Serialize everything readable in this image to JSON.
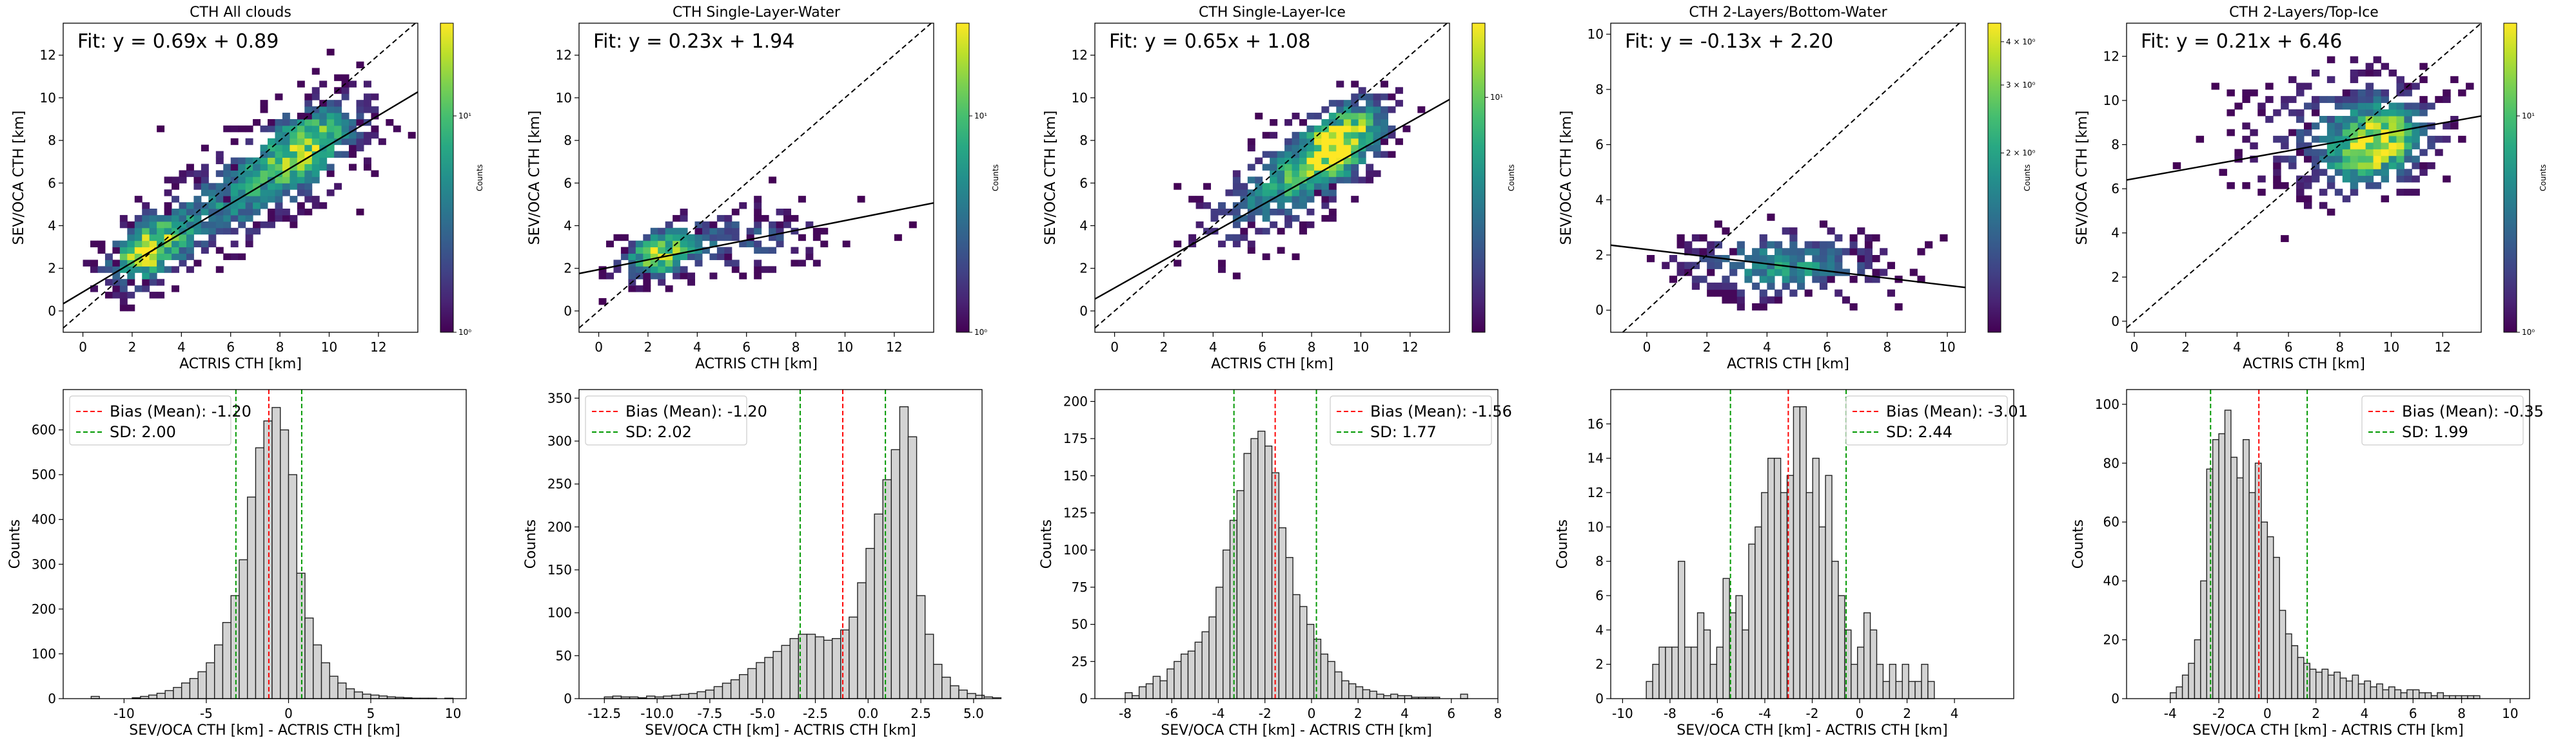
{
  "figure": {
    "colors": {
      "hist_fill": "#d3d3d3",
      "hist_edge": "#222222",
      "bias_line": "#ff0000",
      "sd_line": "#009900",
      "fit_line": "#000000",
      "identity_line": "#000000"
    },
    "colormap": "viridis"
  },
  "chart_data": [
    {
      "type": "heatmap",
      "panel": "scatter",
      "title": "CTH All clouds",
      "xlabel": "ACTRIS CTH [km]",
      "ylabel": "SEV/OCA CTH [km]",
      "annotation": "Fit: y = 0.69x + 0.89",
      "fit": {
        "slope": 0.69,
        "intercept": 0.89
      },
      "identity_line": true,
      "xlim": [
        -0.8,
        13.6
      ],
      "ylim": [
        -1.0,
        13.5
      ],
      "xticks": [
        "0",
        "2",
        "4",
        "6",
        "8",
        "10",
        "12"
      ],
      "yticks": [
        "0",
        "2",
        "4",
        "6",
        "8",
        "10",
        "12"
      ],
      "colorbar": {
        "label": "Counts",
        "scale": "log",
        "ticks": [
          "10⁰",
          "10¹"
        ]
      },
      "density_blobs": [
        {
          "x": 2.5,
          "y": 2.7,
          "sx": 1.0,
          "sy": 1.0,
          "w": 1.0,
          "rho": 0.5
        },
        {
          "x": 6.5,
          "y": 5.5,
          "sx": 2.5,
          "sy": 2.0,
          "w": 0.55,
          "rho": 0.75
        },
        {
          "x": 9.0,
          "y": 7.8,
          "sx": 1.3,
          "sy": 1.3,
          "w": 0.7,
          "rho": 0.5
        }
      ]
    },
    {
      "type": "heatmap",
      "panel": "scatter",
      "title": "CTH Single-Layer-Water",
      "xlabel": "ACTRIS CTH [km]",
      "ylabel": "SEV/OCA CTH [km]",
      "annotation": "Fit: y = 0.23x + 1.94",
      "fit": {
        "slope": 0.23,
        "intercept": 1.94
      },
      "identity_line": true,
      "xlim": [
        -0.8,
        13.6
      ],
      "ylim": [
        -1.0,
        13.5
      ],
      "xticks": [
        "0",
        "2",
        "4",
        "6",
        "8",
        "10",
        "12"
      ],
      "yticks": [
        "0",
        "2",
        "4",
        "6",
        "8",
        "10",
        "12"
      ],
      "colorbar": {
        "label": "Counts",
        "scale": "log",
        "ticks": [
          "10⁰",
          "10¹"
        ]
      },
      "density_blobs": [
        {
          "x": 2.3,
          "y": 2.5,
          "sx": 0.9,
          "sy": 0.7,
          "w": 1.0,
          "rho": 0.4
        },
        {
          "x": 5.5,
          "y": 3.2,
          "sx": 2.2,
          "sy": 0.9,
          "w": 0.35,
          "rho": 0.2
        }
      ]
    },
    {
      "type": "heatmap",
      "panel": "scatter",
      "title": "CTH Single-Layer-Ice",
      "xlabel": "ACTRIS CTH [km]",
      "ylabel": "SEV/OCA CTH [km]",
      "annotation": "Fit: y = 0.65x + 1.08",
      "fit": {
        "slope": 0.65,
        "intercept": 1.08
      },
      "identity_line": true,
      "xlim": [
        -0.8,
        13.6
      ],
      "ylim": [
        -1.0,
        13.5
      ],
      "xticks": [
        "0",
        "2",
        "4",
        "6",
        "8",
        "10",
        "12"
      ],
      "yticks": [
        "0",
        "2",
        "4",
        "6",
        "8",
        "10",
        "12"
      ],
      "colorbar": {
        "label": "Counts",
        "scale": "log",
        "ticks": [
          "10¹"
        ]
      },
      "density_blobs": [
        {
          "x": 7.0,
          "y": 6.0,
          "sx": 2.0,
          "sy": 1.8,
          "w": 0.6,
          "rho": 0.7
        },
        {
          "x": 9.0,
          "y": 7.8,
          "sx": 1.1,
          "sy": 1.2,
          "w": 1.0,
          "rho": 0.5
        }
      ]
    },
    {
      "type": "heatmap",
      "panel": "scatter",
      "title": "CTH 2-Layers/Bottom-Water",
      "xlabel": "ACTRIS CTH [km]",
      "ylabel": "SEV/OCA CTH [km]",
      "annotation": "Fit: y = -0.13x + 2.20",
      "fit": {
        "slope": -0.13,
        "intercept": 2.2
      },
      "identity_line": true,
      "xlim": [
        -1.2,
        10.6
      ],
      "ylim": [
        -0.8,
        10.4
      ],
      "xticks": [
        "0",
        "2",
        "4",
        "6",
        "8",
        "10"
      ],
      "yticks": [
        "0",
        "2",
        "4",
        "6",
        "8",
        "10"
      ],
      "colorbar": {
        "label": "Counts",
        "scale": "log",
        "ticks": [
          "2 × 10⁰",
          "3 × 10⁰",
          "4 × 10⁰"
        ]
      },
      "density_blobs": [
        {
          "x": 4.5,
          "y": 1.5,
          "sx": 2.0,
          "sy": 0.7,
          "w": 0.6,
          "rho": 0.0
        }
      ]
    },
    {
      "type": "heatmap",
      "panel": "scatter",
      "title": "CTH 2-Layers/Top-Ice",
      "xlabel": "ACTRIS CTH [km]",
      "ylabel": "SEV/OCA CTH [km]",
      "annotation": "Fit: y = 0.21x + 6.46",
      "fit": {
        "slope": 0.21,
        "intercept": 6.46
      },
      "identity_line": true,
      "xlim": [
        -0.3,
        13.5
      ],
      "ylim": [
        -0.5,
        13.5
      ],
      "xticks": [
        "0",
        "2",
        "4",
        "6",
        "8",
        "10",
        "12"
      ],
      "yticks": [
        "0",
        "2",
        "4",
        "6",
        "8",
        "10",
        "12"
      ],
      "colorbar": {
        "label": "Counts",
        "scale": "log",
        "ticks": [
          "10⁰",
          "10¹"
        ]
      },
      "density_blobs": [
        {
          "x": 9.3,
          "y": 7.8,
          "sx": 1.1,
          "sy": 1.1,
          "w": 1.0,
          "rho": 0.3
        },
        {
          "x": 8.0,
          "y": 8.5,
          "sx": 2.2,
          "sy": 1.6,
          "w": 0.35,
          "rho": 0.2
        }
      ]
    },
    {
      "type": "bar",
      "panel": "histogram",
      "xlabel": "SEV/OCA CTH [km] - ACTRIS CTH [km]",
      "ylabel": "Counts",
      "xlim": [
        -13.7,
        10.8
      ],
      "ylim": [
        0,
        690
      ],
      "xticks": [
        "-10",
        "-5",
        "0",
        "5",
        "10"
      ],
      "yticks": [
        "0",
        "100",
        "200",
        "300",
        "400",
        "500",
        "600"
      ],
      "bins": {
        "start": -12.0,
        "width": 0.5
      },
      "values": [
        5,
        0,
        0,
        0,
        0,
        2,
        5,
        8,
        12,
        18,
        25,
        35,
        45,
        60,
        80,
        120,
        170,
        230,
        310,
        450,
        560,
        620,
        650,
        600,
        500,
        280,
        180,
        120,
        80,
        50,
        35,
        22,
        15,
        10,
        8,
        6,
        4,
        3,
        2,
        1,
        1,
        1,
        0,
        1
      ],
      "bias": -1.2,
      "sd": 2.0,
      "sd_lines": [
        -3.2,
        0.8
      ],
      "legend": [
        "Bias (Mean): -1.20",
        "SD: 2.00"
      ],
      "legend_position": "upper-left"
    },
    {
      "type": "bar",
      "panel": "histogram",
      "xlabel": "SEV/OCA CTH [km] - ACTRIS CTH [km]",
      "ylabel": "Counts",
      "xlim": [
        -13.7,
        5.4
      ],
      "ylim": [
        0,
        360
      ],
      "xticks": [
        "-12.5",
        "-10.0",
        "-7.5",
        "-5.0",
        "-2.5",
        "0.0",
        "2.5",
        "5.0"
      ],
      "yticks": [
        "0",
        "50",
        "100",
        "150",
        "200",
        "250",
        "300",
        "350"
      ],
      "bins": {
        "start": -12.5,
        "width": 0.4
      },
      "values": [
        2,
        3,
        2,
        2,
        1,
        3,
        2,
        3,
        4,
        5,
        6,
        8,
        10,
        14,
        18,
        22,
        28,
        35,
        42,
        48,
        55,
        62,
        70,
        75,
        75,
        72,
        68,
        70,
        80,
        95,
        135,
        175,
        215,
        255,
        290,
        340,
        305,
        120,
        75,
        40,
        25,
        15,
        10,
        6,
        4,
        2,
        1
      ],
      "bias": -1.2,
      "sd": 2.02,
      "sd_lines": [
        -3.22,
        0.82
      ],
      "legend": [
        "Bias (Mean): -1.20",
        "SD: 2.02"
      ],
      "legend_position": "upper-left"
    },
    {
      "type": "bar",
      "panel": "histogram",
      "xlabel": "SEV/OCA CTH [km] - ACTRIS CTH [km]",
      "ylabel": "Counts",
      "xlim": [
        -9.3,
        8.0
      ],
      "ylim": [
        0,
        208
      ],
      "xticks": [
        "-8",
        "-6",
        "-4",
        "-2",
        "0",
        "2",
        "4",
        "6",
        "8"
      ],
      "yticks": [
        "0",
        "25",
        "50",
        "75",
        "100",
        "125",
        "150",
        "175",
        "200"
      ],
      "bins": {
        "start": -8.0,
        "width": 0.3
      },
      "values": [
        4,
        2,
        8,
        10,
        15,
        12,
        20,
        25,
        30,
        32,
        38,
        45,
        55,
        75,
        100,
        120,
        140,
        165,
        175,
        180,
        170,
        152,
        115,
        95,
        70,
        62,
        50,
        40,
        30,
        25,
        18,
        12,
        10,
        8,
        6,
        5,
        3,
        2,
        3,
        2,
        2,
        1,
        1,
        1,
        1,
        0,
        0,
        0,
        3
      ],
      "bias": -1.56,
      "sd": 1.77,
      "sd_lines": [
        -3.33,
        0.21
      ],
      "legend": [
        "Bias (Mean): -1.56",
        "SD: 1.77"
      ],
      "legend_position": "upper-right"
    },
    {
      "type": "bar",
      "panel": "histogram",
      "xlabel": "SEV/OCA CTH [km] - ACTRIS CTH [km]",
      "ylabel": "Counts",
      "xlim": [
        -10.5,
        6.5
      ],
      "ylim": [
        0,
        18
      ],
      "xticks": [
        "-10",
        "-8",
        "-6",
        "-4",
        "-2",
        "0",
        "2",
        "4"
      ],
      "yticks": [
        "0",
        "2",
        "4",
        "6",
        "8",
        "10",
        "12",
        "14",
        "16"
      ],
      "bins": {
        "start": -9.0,
        "width": 0.27
      },
      "values": [
        1,
        2,
        3,
        3,
        3,
        8,
        3,
        3,
        5,
        4,
        2,
        3,
        7,
        5,
        6,
        4,
        9,
        10,
        12,
        14,
        14,
        12,
        13,
        17,
        17,
        12,
        14,
        10,
        13,
        8,
        6,
        4,
        2,
        3,
        5,
        4,
        2,
        1,
        2,
        1,
        2,
        1,
        1,
        2,
        1
      ],
      "bias": -3.01,
      "sd": 2.44,
      "sd_lines": [
        -5.45,
        -0.57
      ],
      "legend": [
        "Bias (Mean): -3.01",
        "SD: 2.44"
      ],
      "legend_position": "upper-right"
    },
    {
      "type": "bar",
      "panel": "histogram",
      "xlabel": "SEV/OCA CTH [km] - ACTRIS CTH [km]",
      "ylabel": "Counts",
      "xlim": [
        -5.8,
        10.8
      ],
      "ylim": [
        0,
        105
      ],
      "xticks": [
        "-4",
        "-2",
        "0",
        "2",
        "4",
        "6",
        "8",
        "10"
      ],
      "yticks": [
        "0",
        "20",
        "40",
        "60",
        "80",
        "100"
      ],
      "bins": {
        "start": -4.0,
        "width": 0.25
      },
      "values": [
        2,
        4,
        8,
        12,
        20,
        40,
        78,
        88,
        90,
        98,
        82,
        75,
        88,
        70,
        80,
        60,
        55,
        48,
        30,
        22,
        18,
        14,
        12,
        10,
        9,
        10,
        8,
        9,
        7,
        6,
        8,
        5,
        6,
        4,
        5,
        3,
        4,
        3,
        2,
        3,
        3,
        2,
        2,
        1,
        2,
        1,
        1,
        1,
        1,
        1,
        1
      ],
      "bias": -0.35,
      "sd": 1.99,
      "sd_lines": [
        -2.34,
        1.64
      ],
      "legend": [
        "Bias (Mean): -0.35",
        "SD: 1.99"
      ],
      "legend_position": "upper-right"
    }
  ]
}
